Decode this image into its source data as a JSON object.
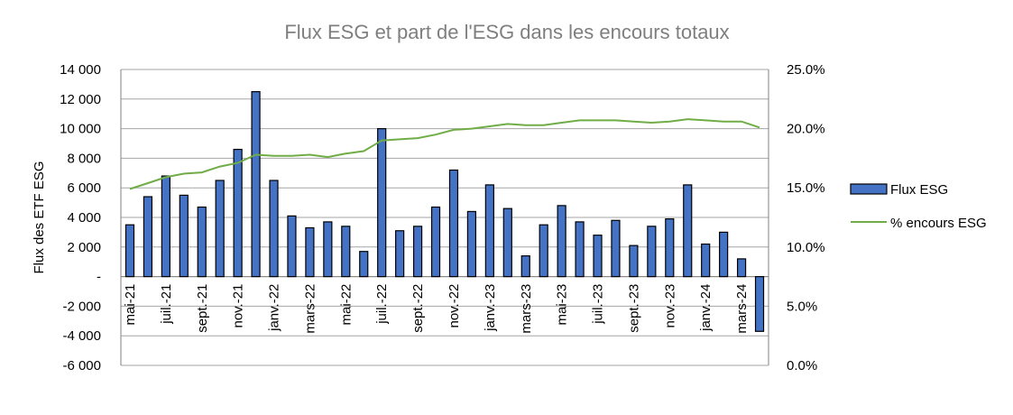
{
  "chart_data": {
    "type": "bar+line",
    "title": "Flux ESG et part de l'ESG dans les encours totaux",
    "ylabel_left": "Flux des ETF ESG",
    "ylim_left": [
      -6000,
      14000
    ],
    "yticks_left": [
      "14 000",
      "12 000",
      "10 000",
      "8 000",
      "6 000",
      "4 000",
      "2 000",
      "-",
      "-2 000",
      "-4 000",
      "-6 000"
    ],
    "ylim_right": [
      0,
      25
    ],
    "yticks_right": [
      "25.0%",
      "20.0%",
      "15.0%",
      "10.0%",
      "5.0%",
      "0.0%"
    ],
    "grid": true,
    "legend_position": "right",
    "x_tick_labels": [
      "mai-21",
      "juil.-21",
      "sept.-21",
      "nov.-21",
      "janv.-22",
      "mars-22",
      "mai-22",
      "juil.-22",
      "sept.-22",
      "nov.-22",
      "janv.-23",
      "mars-23",
      "mai-23",
      "juil.-23",
      "sept.-23",
      "nov.-23",
      "janv.-24",
      "mars-24"
    ],
    "categories": [
      "mai-21",
      "juin-21",
      "juil.-21",
      "août-21",
      "sept.-21",
      "oct.-21",
      "nov.-21",
      "déc.-21",
      "janv.-22",
      "févr.-22",
      "mars-22",
      "avr.-22",
      "mai-22",
      "juin-22",
      "juil.-22",
      "août-22",
      "sept.-22",
      "oct.-22",
      "nov.-22",
      "déc.-22",
      "janv.-23",
      "févr.-23",
      "mars-23",
      "avr.-23",
      "mai-23",
      "juin-23",
      "juil.-23",
      "août-23",
      "sept.-23",
      "oct.-23",
      "nov.-23",
      "déc.-23",
      "janv.-24",
      "févr.-24",
      "mars-24",
      "avr.-24"
    ],
    "series": [
      {
        "name": "Flux ESG",
        "type": "bar",
        "axis": "left",
        "color": "#4472c4",
        "values": [
          3500,
          5400,
          6800,
          5500,
          4700,
          6500,
          8600,
          12500,
          6500,
          4100,
          3300,
          3700,
          3400,
          1700,
          10000,
          3100,
          3400,
          4700,
          7200,
          4400,
          6200,
          4600,
          1400,
          3500,
          4800,
          3700,
          2800,
          3800,
          2100,
          3400,
          3900,
          6200,
          2200,
          3000,
          1200,
          -3700
        ]
      },
      {
        "name": "% encours ESG",
        "type": "line",
        "axis": "right",
        "color": "#70ad47",
        "values": [
          14.9,
          15.4,
          15.9,
          16.2,
          16.3,
          16.8,
          17.1,
          17.8,
          17.7,
          17.7,
          17.8,
          17.6,
          17.9,
          18.1,
          19.0,
          19.1,
          19.2,
          19.5,
          19.9,
          20.0,
          20.2,
          20.4,
          20.3,
          20.3,
          20.5,
          20.7,
          20.7,
          20.7,
          20.6,
          20.5,
          20.6,
          20.8,
          20.7,
          20.6,
          20.6,
          20.1
        ]
      }
    ]
  }
}
